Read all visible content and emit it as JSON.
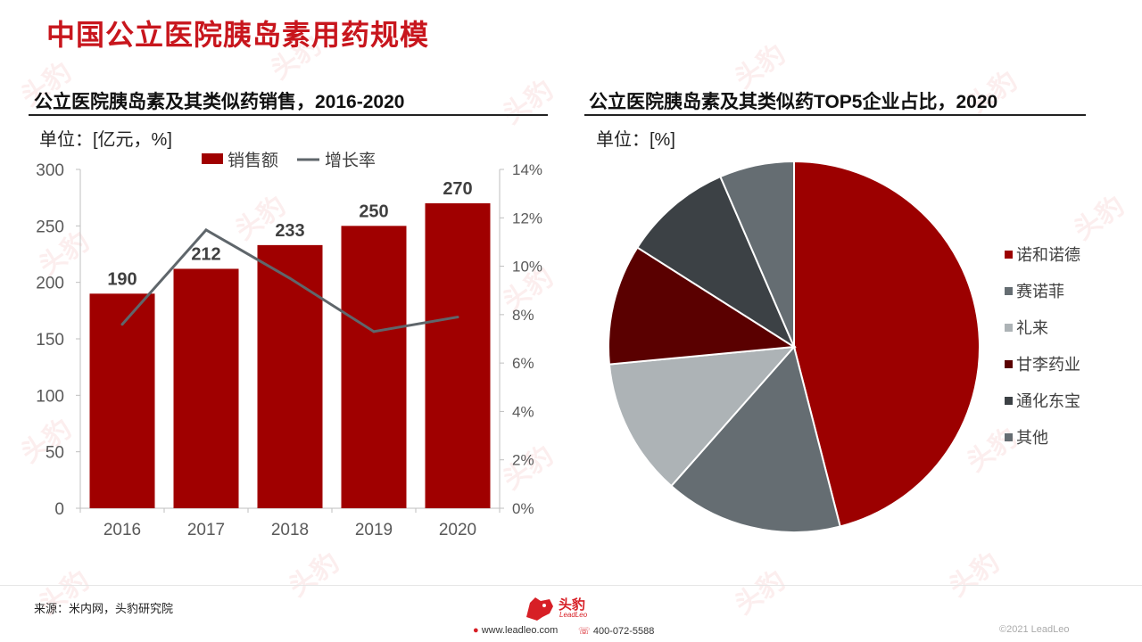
{
  "page": {
    "title": "中国公立医院胰岛素用药规模",
    "watermark_text": "头豹"
  },
  "colors": {
    "brand": "#c8161d",
    "bar": "#a00000",
    "line": "#5f666b",
    "pie": [
      "#9c0000",
      "#656d72",
      "#adb3b6",
      "#5a0000",
      "#3c4145",
      "#656d72"
    ]
  },
  "left_chart": {
    "subtitle": "公立医院胰岛素及其类似药销售，2016-2020",
    "unit": "单位：[亿元，%]"
  },
  "right_chart": {
    "subtitle": "公立医院胰岛素及其类似药TOP5企业占比，2020",
    "unit": "单位：[%]"
  },
  "chart_data": [
    {
      "type": "bar",
      "categories": [
        "2016",
        "2017",
        "2018",
        "2019",
        "2020"
      ],
      "series": [
        {
          "name": "销售额",
          "type": "bar",
          "axis": "left",
          "values": [
            190,
            212,
            233,
            250,
            270
          ],
          "data_labels": [
            "190",
            "212",
            "233",
            "250",
            "270"
          ]
        },
        {
          "name": "增长率",
          "type": "line",
          "axis": "right",
          "values": [
            7.6,
            11.5,
            9.5,
            7.3,
            7.9
          ]
        }
      ],
      "left_axis": {
        "min": 0,
        "max": 300,
        "ticks": [
          "0",
          "50",
          "100",
          "150",
          "200",
          "250",
          "300"
        ]
      },
      "right_axis": {
        "min": 0,
        "max": 14,
        "ticks": [
          "0%",
          "2%",
          "4%",
          "6%",
          "8%",
          "10%",
          "12%",
          "14%"
        ]
      },
      "legend_position": "top",
      "grid": false
    },
    {
      "type": "pie",
      "labels": [
        "诺和诺德",
        "赛诺菲",
        "礼来",
        "甘李药业",
        "通化东宝",
        "其他"
      ],
      "values": [
        46,
        15.5,
        12,
        10.5,
        9.5,
        6.5
      ],
      "legend_position": "right"
    }
  ],
  "footer": {
    "source": "来源：米内网，头豹研究院",
    "logo_text": "头豹",
    "logo_sub": "LeadLeo",
    "website": "www.leadleo.com",
    "phone": "400-072-5588",
    "copyright": "©2021 LeadLeo"
  }
}
